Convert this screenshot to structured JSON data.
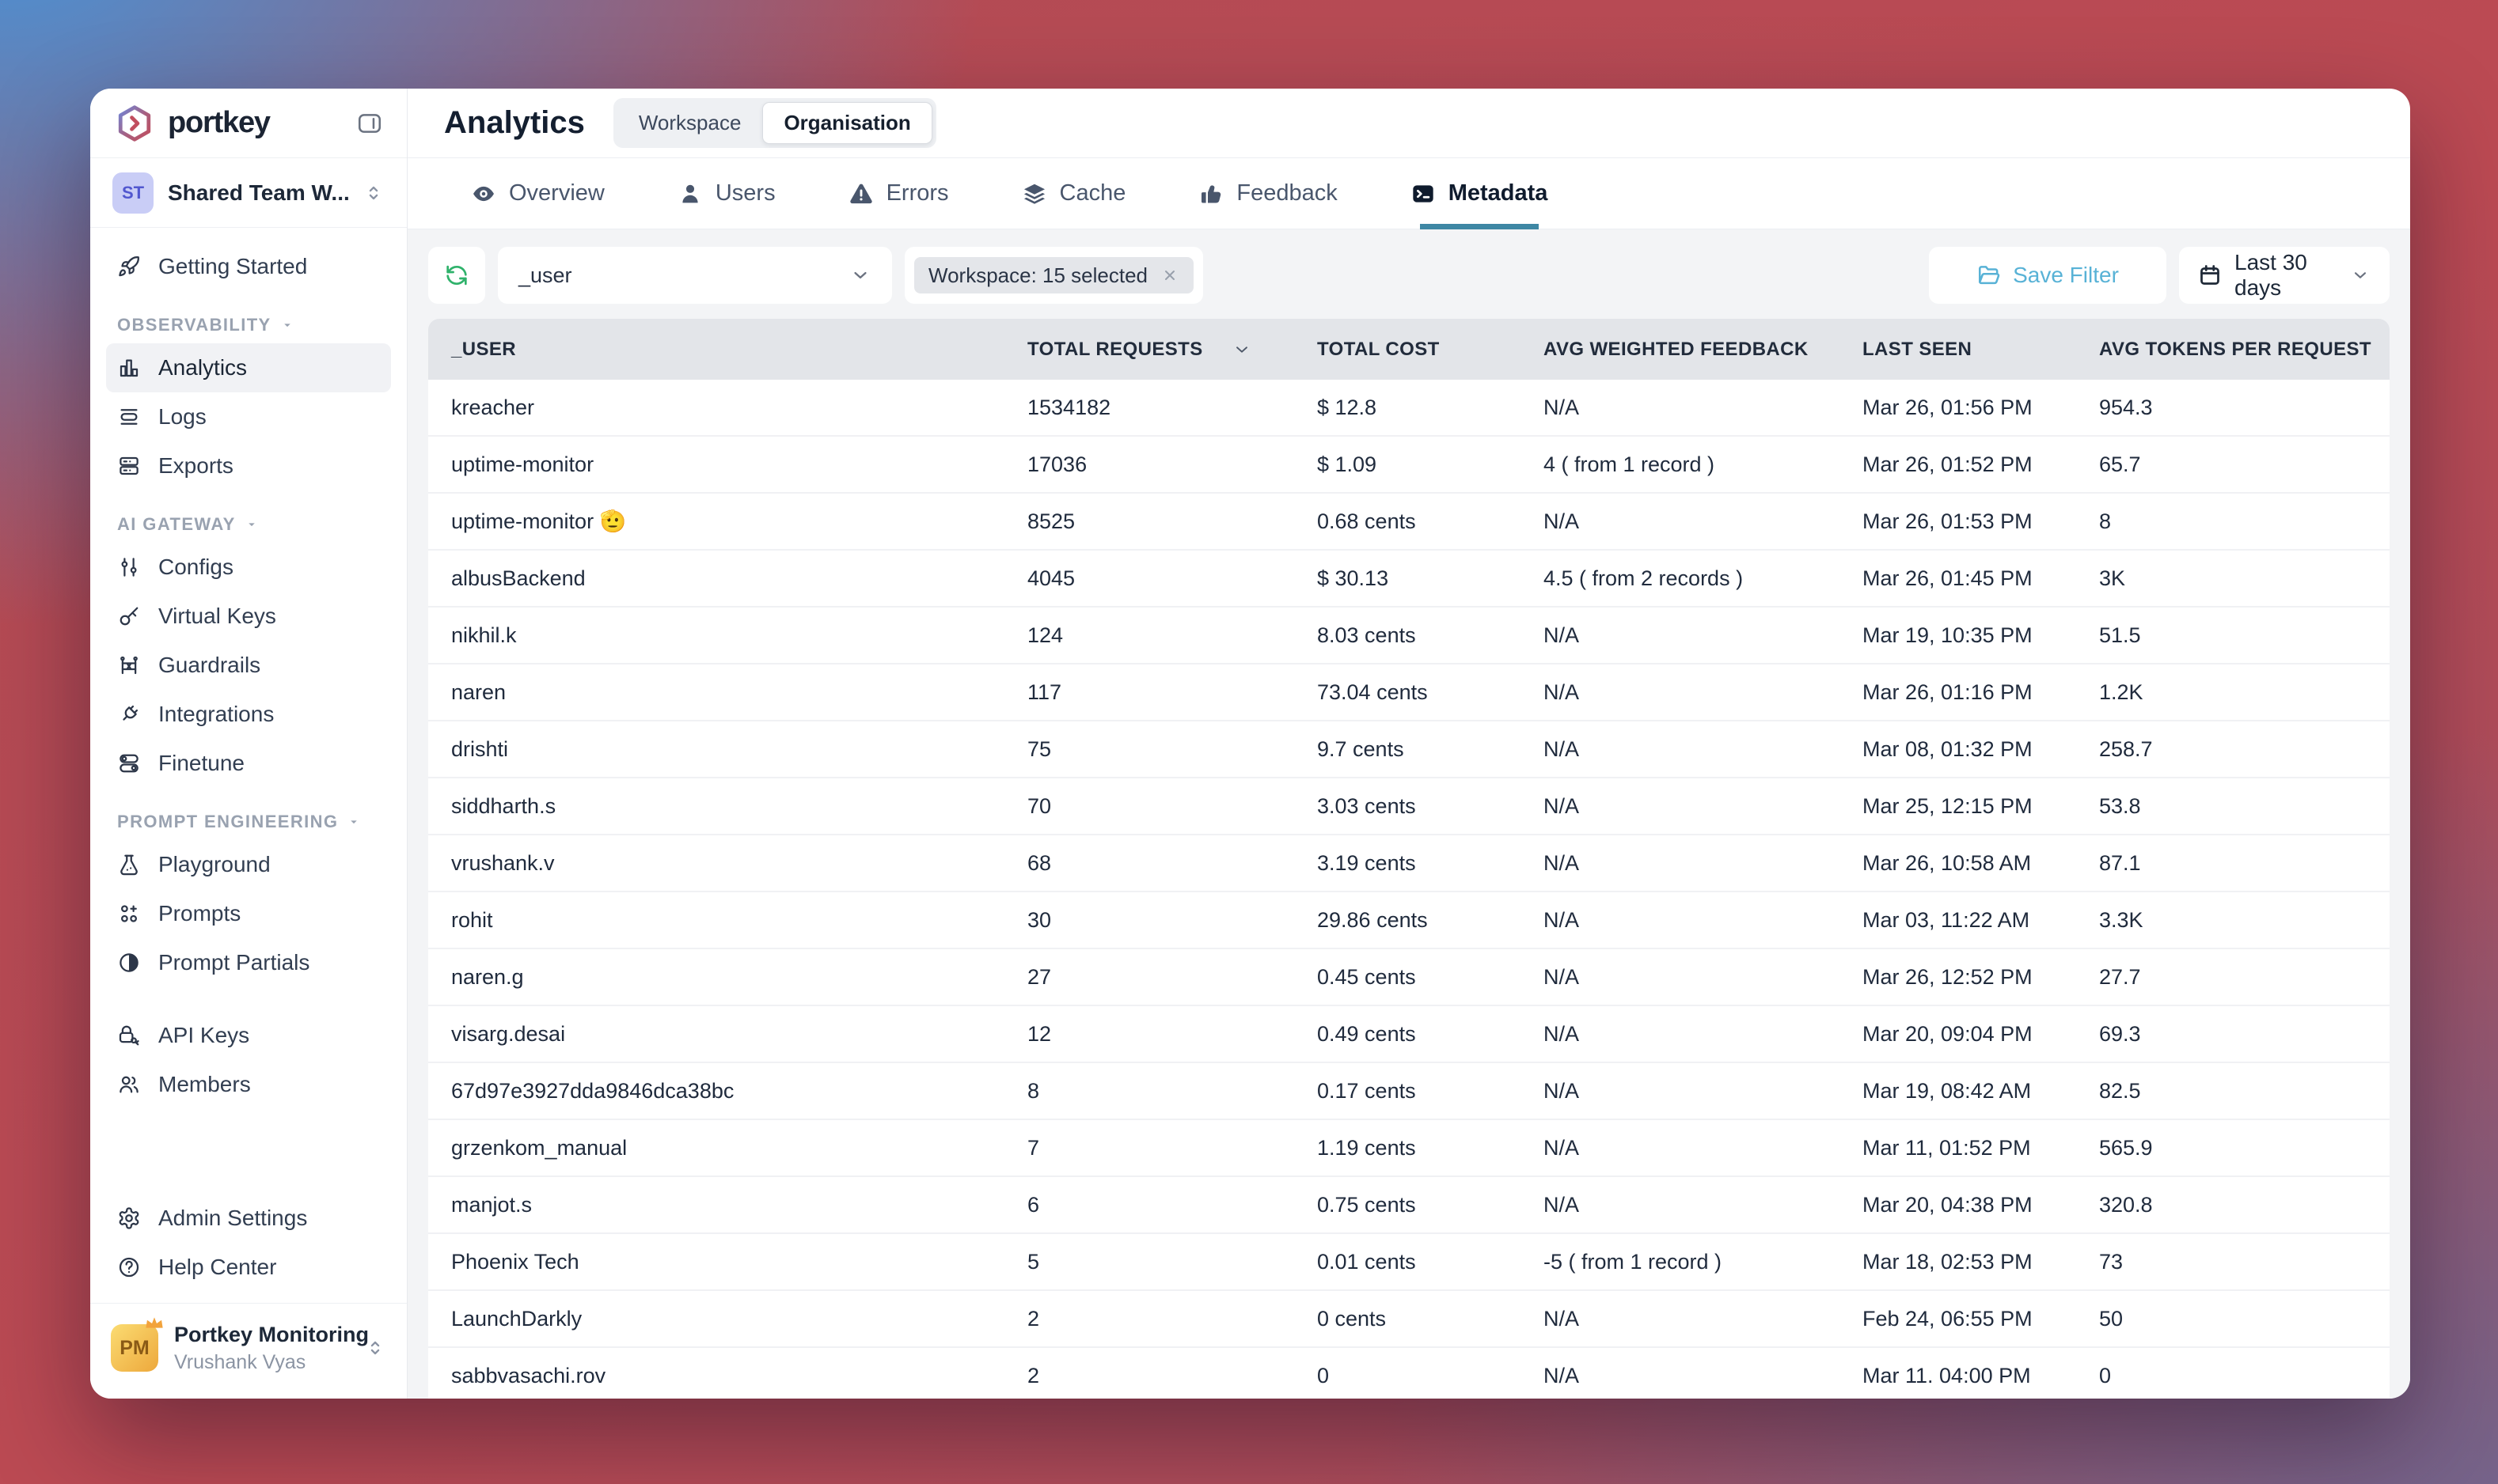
{
  "brand": {
    "name": "portkey"
  },
  "workspace_switcher": {
    "initials": "ST",
    "label": "Shared Team W..."
  },
  "sidebar": {
    "top_items": [
      {
        "icon": "rocket-icon",
        "label": "Getting Started"
      }
    ],
    "sections": [
      {
        "label": "OBSERVABILITY",
        "items": [
          {
            "icon": "analytics-icon",
            "label": "Analytics",
            "active": true
          },
          {
            "icon": "logs-icon",
            "label": "Logs"
          },
          {
            "icon": "exports-icon",
            "label": "Exports"
          }
        ]
      },
      {
        "label": "AI GATEWAY",
        "items": [
          {
            "icon": "configs-icon",
            "label": "Configs"
          },
          {
            "icon": "virtual-keys-icon",
            "label": "Virtual Keys"
          },
          {
            "icon": "guardrails-icon",
            "label": "Guardrails"
          },
          {
            "icon": "integrations-icon",
            "label": "Integrations"
          },
          {
            "icon": "finetune-icon",
            "label": "Finetune"
          }
        ]
      },
      {
        "label": "PROMPT ENGINEERING",
        "items": [
          {
            "icon": "playground-icon",
            "label": "Playground"
          },
          {
            "icon": "prompts-icon",
            "label": "Prompts"
          },
          {
            "icon": "prompt-partials-icon",
            "label": "Prompt Partials"
          }
        ]
      },
      {
        "label": null,
        "items": [
          {
            "icon": "api-keys-icon",
            "label": "API Keys"
          },
          {
            "icon": "members-icon",
            "label": "Members"
          }
        ]
      }
    ],
    "footer_items": [
      {
        "icon": "gear-icon",
        "label": "Admin Settings"
      },
      {
        "icon": "help-icon",
        "label": "Help Center"
      }
    ],
    "account": {
      "initials": "PM",
      "org": "Portkey Monitoring",
      "user": "Vrushank Vyas"
    }
  },
  "header": {
    "title": "Analytics",
    "scope_options": [
      "Workspace",
      "Organisation"
    ],
    "active_scope": "Organisation"
  },
  "tabs": [
    {
      "icon": "eye-icon",
      "label": "Overview"
    },
    {
      "icon": "user-icon",
      "label": "Users"
    },
    {
      "icon": "warning-icon",
      "label": "Errors"
    },
    {
      "icon": "layers-icon",
      "label": "Cache"
    },
    {
      "icon": "thumbs-up-icon",
      "label": "Feedback"
    },
    {
      "icon": "terminal-icon",
      "label": "Metadata",
      "active": true
    }
  ],
  "filter_bar": {
    "group_by": "_user",
    "workspace_chip": "Workspace: 15 selected",
    "save_filter_label": "Save Filter",
    "date_range_label": "Last 30 days"
  },
  "table": {
    "columns": [
      "_USER",
      "TOTAL REQUESTS",
      "TOTAL COST",
      "AVG WEIGHTED FEEDBACK",
      "LAST SEEN",
      "AVG TOKENS PER REQUEST"
    ],
    "sorted_column": "TOTAL REQUESTS",
    "rows": [
      {
        "user": "kreacher",
        "total_requests": "1534182",
        "total_cost": "$ 12.8",
        "avg_weighted_feedback": "N/A",
        "last_seen": "Mar 26, 01:56 PM",
        "avg_tokens_per_request": "954.3"
      },
      {
        "user": "uptime-monitor",
        "total_requests": "17036",
        "total_cost": "$ 1.09",
        "avg_weighted_feedback": "4 ( from 1 record )",
        "last_seen": "Mar 26, 01:52 PM",
        "avg_tokens_per_request": "65.7"
      },
      {
        "user": "uptime-monitor 🫡",
        "total_requests": "8525",
        "total_cost": "0.68 cents",
        "avg_weighted_feedback": "N/A",
        "last_seen": "Mar 26, 01:53 PM",
        "avg_tokens_per_request": "8"
      },
      {
        "user": "albusBackend",
        "total_requests": "4045",
        "total_cost": "$ 30.13",
        "avg_weighted_feedback": "4.5 ( from 2 records )",
        "last_seen": "Mar 26, 01:45 PM",
        "avg_tokens_per_request": "3K"
      },
      {
        "user": "nikhil.k",
        "total_requests": "124",
        "total_cost": "8.03 cents",
        "avg_weighted_feedback": "N/A",
        "last_seen": "Mar 19, 10:35 PM",
        "avg_tokens_per_request": "51.5"
      },
      {
        "user": "naren",
        "total_requests": "117",
        "total_cost": "73.04 cents",
        "avg_weighted_feedback": "N/A",
        "last_seen": "Mar 26, 01:16 PM",
        "avg_tokens_per_request": "1.2K"
      },
      {
        "user": "drishti",
        "total_requests": "75",
        "total_cost": "9.7 cents",
        "avg_weighted_feedback": "N/A",
        "last_seen": "Mar 08, 01:32 PM",
        "avg_tokens_per_request": "258.7"
      },
      {
        "user": "siddharth.s",
        "total_requests": "70",
        "total_cost": "3.03 cents",
        "avg_weighted_feedback": "N/A",
        "last_seen": "Mar 25, 12:15 PM",
        "avg_tokens_per_request": "53.8"
      },
      {
        "user": "vrushank.v",
        "total_requests": "68",
        "total_cost": "3.19 cents",
        "avg_weighted_feedback": "N/A",
        "last_seen": "Mar 26, 10:58 AM",
        "avg_tokens_per_request": "87.1"
      },
      {
        "user": "rohit",
        "total_requests": "30",
        "total_cost": "29.86 cents",
        "avg_weighted_feedback": "N/A",
        "last_seen": "Mar 03, 11:22 AM",
        "avg_tokens_per_request": "3.3K"
      },
      {
        "user": "naren.g",
        "total_requests": "27",
        "total_cost": "0.45 cents",
        "avg_weighted_feedback": "N/A",
        "last_seen": "Mar 26, 12:52 PM",
        "avg_tokens_per_request": "27.7"
      },
      {
        "user": "visarg.desai",
        "total_requests": "12",
        "total_cost": "0.49 cents",
        "avg_weighted_feedback": "N/A",
        "last_seen": "Mar 20, 09:04 PM",
        "avg_tokens_per_request": "69.3"
      },
      {
        "user": "67d97e3927dda9846dca38bc",
        "total_requests": "8",
        "total_cost": "0.17 cents",
        "avg_weighted_feedback": "N/A",
        "last_seen": "Mar 19, 08:42 AM",
        "avg_tokens_per_request": "82.5"
      },
      {
        "user": "grzenkom_manual",
        "total_requests": "7",
        "total_cost": "1.19 cents",
        "avg_weighted_feedback": "N/A",
        "last_seen": "Mar 11, 01:52 PM",
        "avg_tokens_per_request": "565.9"
      },
      {
        "user": "manjot.s",
        "total_requests": "6",
        "total_cost": "0.75 cents",
        "avg_weighted_feedback": "N/A",
        "last_seen": "Mar 20, 04:38 PM",
        "avg_tokens_per_request": "320.8"
      },
      {
        "user": "Phoenix Tech",
        "total_requests": "5",
        "total_cost": "0.01 cents",
        "avg_weighted_feedback": "-5 ( from 1 record )",
        "last_seen": "Mar 18, 02:53 PM",
        "avg_tokens_per_request": "73"
      },
      {
        "user": "LaunchDarkly",
        "total_requests": "2",
        "total_cost": "0 cents",
        "avg_weighted_feedback": "N/A",
        "last_seen": "Feb 24, 06:55 PM",
        "avg_tokens_per_request": "50"
      },
      {
        "user": "sabbvasachi.rov",
        "total_requests": "2",
        "total_cost": "0",
        "avg_weighted_feedback": "N/A",
        "last_seen": "Mar 11. 04:00 PM",
        "avg_tokens_per_request": "0"
      }
    ]
  },
  "colors": {
    "accent_teal": "#3E87A4",
    "save_filter_blue": "#58B2D6",
    "refresh_green": "#2FB26B"
  }
}
